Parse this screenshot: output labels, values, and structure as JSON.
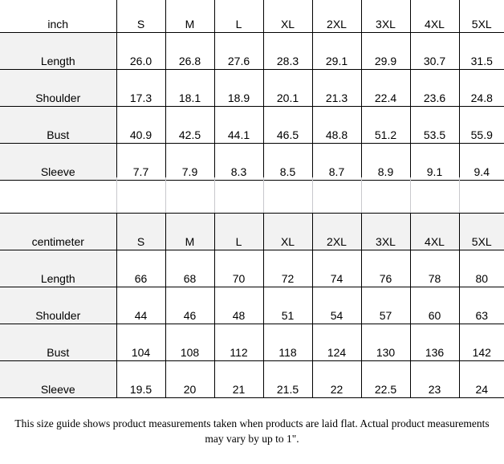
{
  "sizes": [
    "S",
    "M",
    "L",
    "XL",
    "2XL",
    "3XL",
    "4XL",
    "5XL"
  ],
  "inch_table": {
    "unit_label": "inch",
    "rows": [
      {
        "label": "Length",
        "values": [
          "26.0",
          "26.8",
          "27.6",
          "28.3",
          "29.1",
          "29.9",
          "30.7",
          "31.5"
        ]
      },
      {
        "label": "Shoulder",
        "values": [
          "17.3",
          "18.1",
          "18.9",
          "20.1",
          "21.3",
          "22.4",
          "23.6",
          "24.8"
        ]
      },
      {
        "label": "Bust",
        "values": [
          "40.9",
          "42.5",
          "44.1",
          "46.5",
          "48.8",
          "51.2",
          "53.5",
          "55.9"
        ]
      },
      {
        "label": "Sleeve",
        "values": [
          "7.7",
          "7.9",
          "8.3",
          "8.5",
          "8.7",
          "8.9",
          "9.1",
          "9.4"
        ]
      }
    ]
  },
  "cm_table": {
    "unit_label": "centimeter",
    "rows": [
      {
        "label": "Length",
        "values": [
          "66",
          "68",
          "70",
          "72",
          "74",
          "76",
          "78",
          "80"
        ]
      },
      {
        "label": "Shoulder",
        "values": [
          "44",
          "46",
          "48",
          "51",
          "54",
          "57",
          "60",
          "63"
        ]
      },
      {
        "label": "Bust",
        "values": [
          "104",
          "108",
          "112",
          "118",
          "124",
          "130",
          "136",
          "142"
        ]
      },
      {
        "label": "Sleeve",
        "values": [
          "19.5",
          "20",
          "21",
          "21.5",
          "22",
          "22.5",
          "23",
          "24"
        ]
      }
    ]
  },
  "footnote": {
    "line1": "This size guide shows product measurements taken when products are laid flat. Actual product measurements",
    "line2": "may vary by up to 1\"."
  }
}
